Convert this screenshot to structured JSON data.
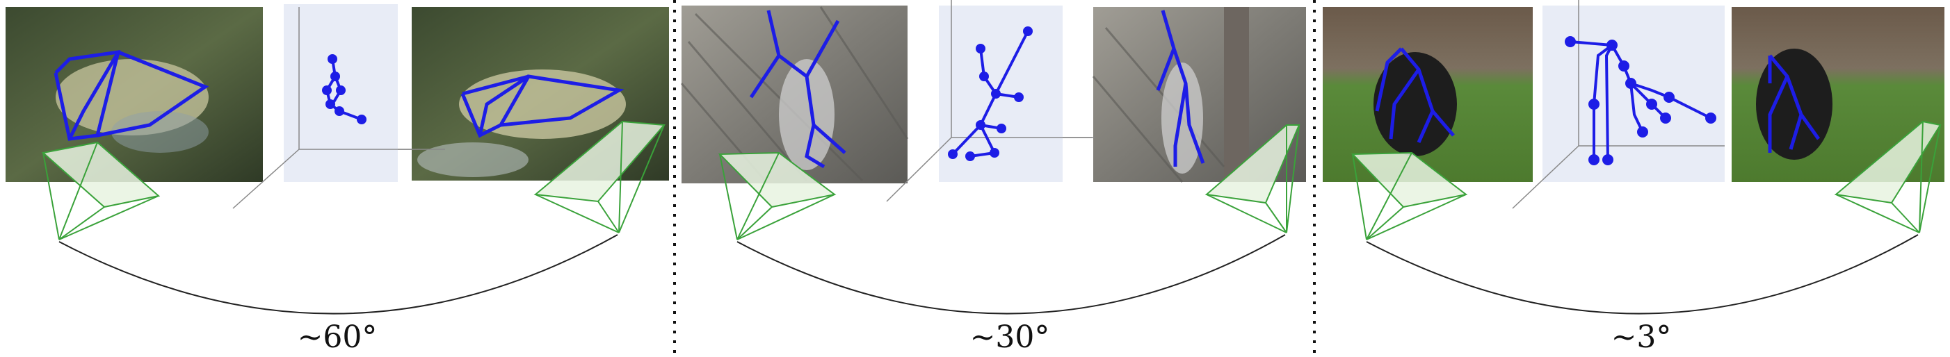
{
  "figure": {
    "panels": [
      {
        "id": "fish",
        "angle": "~60°",
        "colors": {
          "photo_bg": "#4a5a3a",
          "subject": "#c9c7a0"
        }
      },
      {
        "id": "monkey",
        "angle": "~30°",
        "colors": {
          "photo_bg": "#8b8a85",
          "subject": "#cfcfcf"
        }
      },
      {
        "id": "chimp",
        "angle": "~3°",
        "colors": {
          "photo_bg": "#5e7a3a",
          "subject": "#1d1d1d"
        }
      }
    ],
    "colors": {
      "skeleton": "#1d1de6",
      "camera": "#3aa23a",
      "camera_fill": "#e8f3e0",
      "pose_box": "#e8ecf6",
      "arc": "#222222",
      "divider": "#111111"
    }
  }
}
